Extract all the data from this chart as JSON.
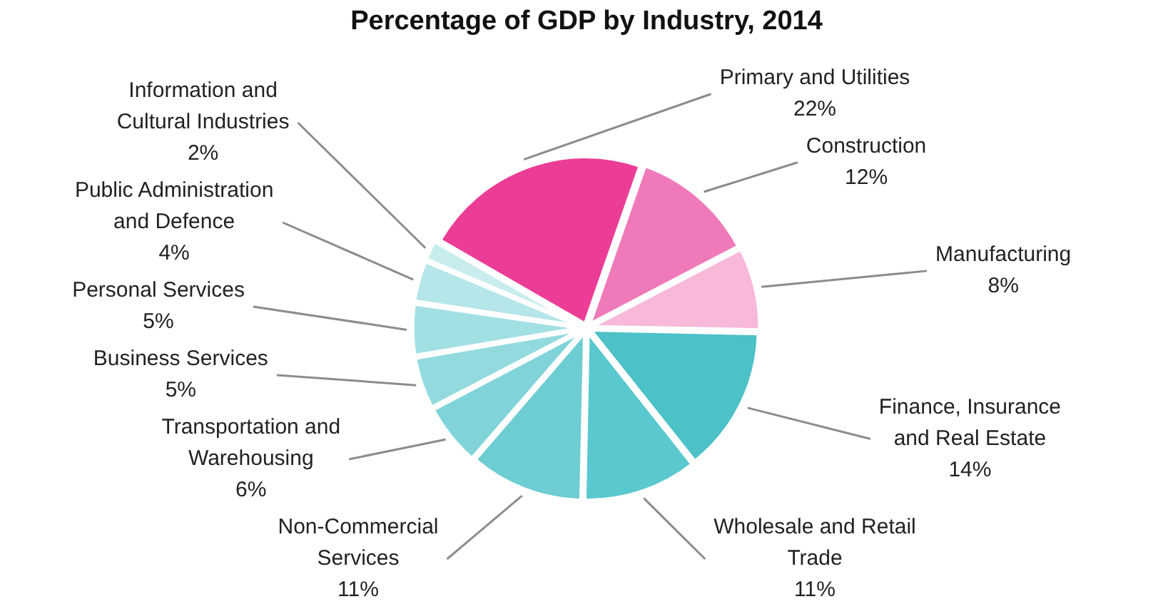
{
  "chart_data": {
    "type": "pie",
    "title": "Percentage of GDP by Industry, 2014",
    "categories": [
      "Primary and Utilities",
      "Construction",
      "Manufacturing",
      "Finance, Insurance and Real Estate",
      "Wholesale and Retail Trade",
      "Non-Commercial Services",
      "Transportation and Warehousing",
      "Business Services",
      "Personal Services",
      "Public Administration and Defence",
      "Information and Cultural Industries"
    ],
    "values": [
      22,
      12,
      8,
      14,
      11,
      11,
      6,
      5,
      5,
      4,
      2
    ],
    "value_labels": [
      "22%",
      "12%",
      "8%",
      "14%",
      "11%",
      "11%",
      "6%",
      "5%",
      "5%",
      "4%",
      "2%"
    ],
    "colors": [
      "#ec3d96",
      "#f07ab9",
      "#f7b8d9",
      "#4cc1c8",
      "#5ac8cf",
      "#6dcdd3",
      "#80d4d9",
      "#92dade",
      "#a3e0e3",
      "#b5e6e9",
      "#c8edef"
    ],
    "legend": false
  }
}
